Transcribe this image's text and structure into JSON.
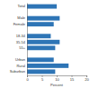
{
  "chart_data": {
    "type": "bar",
    "orientation": "horizontal",
    "categories": [
      "Total",
      null,
      "Male",
      "Female",
      null,
      "18-34",
      "35-54",
      "55+",
      null,
      "Urban",
      "Rural",
      "Suburban"
    ],
    "values": [
      10,
      null,
      11,
      9,
      null,
      8,
      11,
      9.5,
      null,
      9,
      14,
      9.5
    ],
    "color": "#2e75b6",
    "x_label": "Percent",
    "xlim": [
      0,
      20
    ],
    "xticks": [
      0,
      5,
      10,
      15,
      20
    ],
    "grid": false
  }
}
